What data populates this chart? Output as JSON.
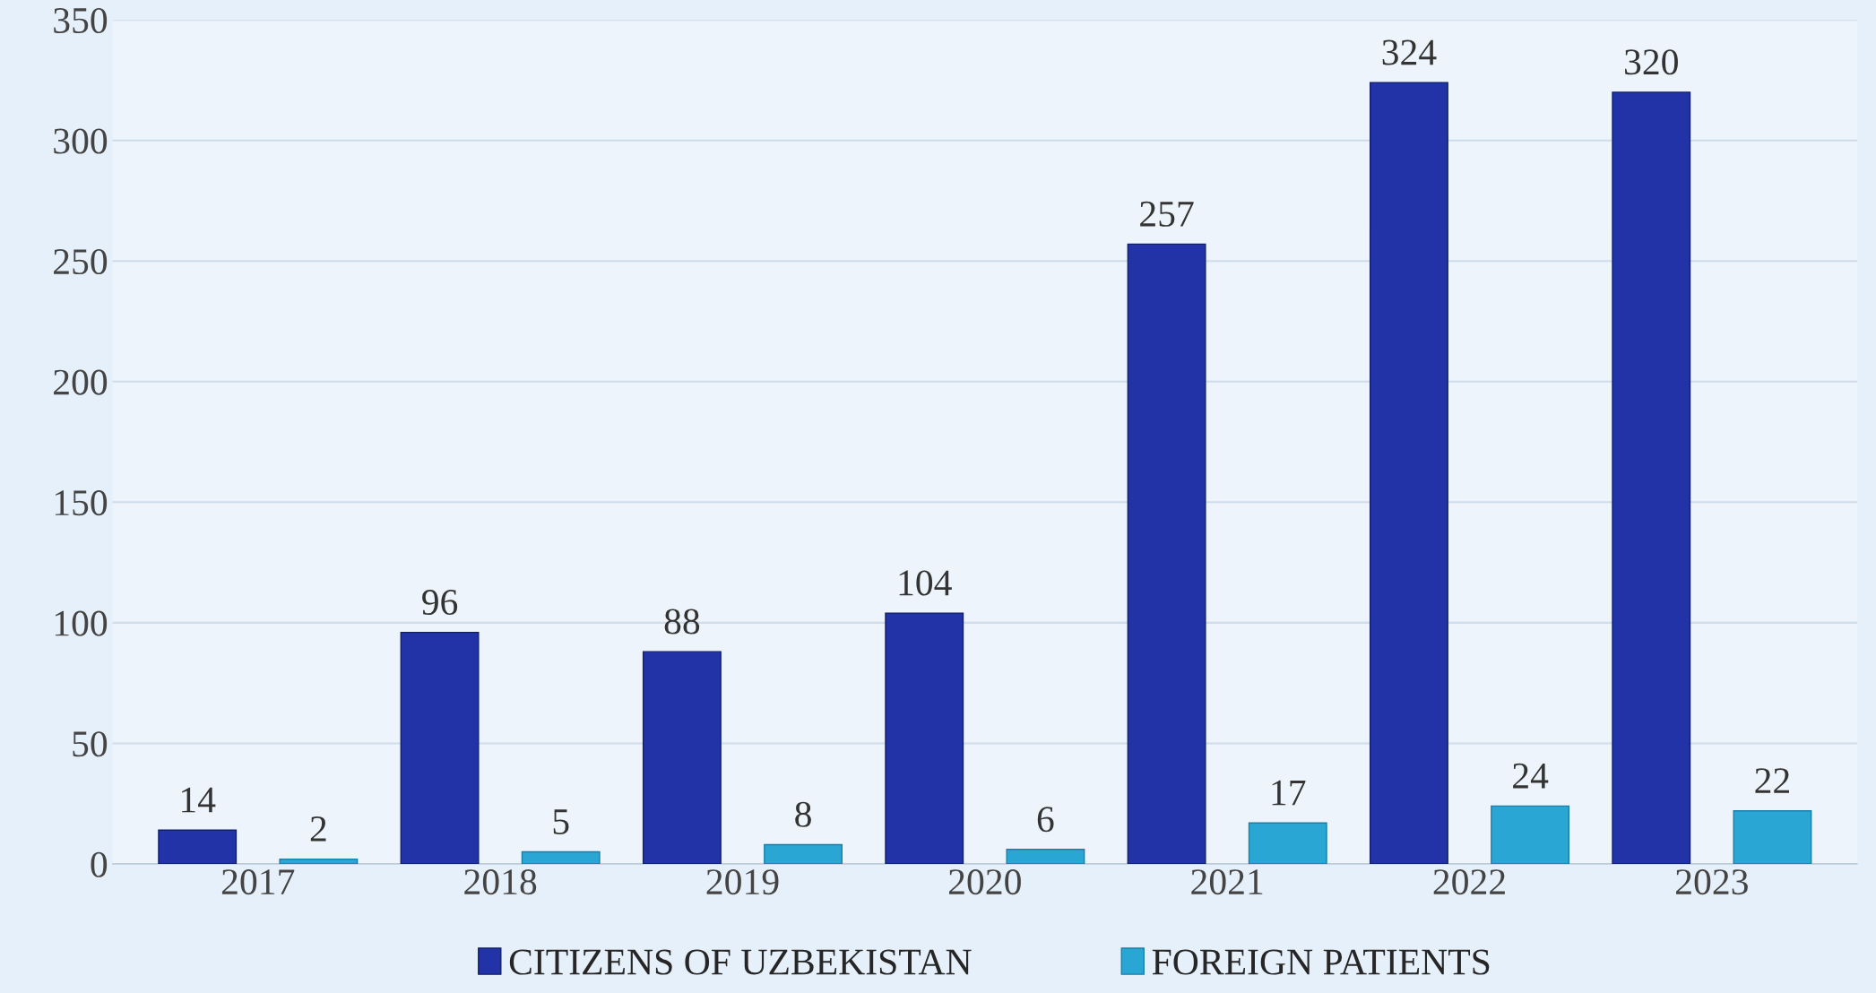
{
  "chart_data": {
    "type": "bar",
    "categories": [
      "2017",
      "2018",
      "2019",
      "2020",
      "2021",
      "2022",
      "2023"
    ],
    "series": [
      {
        "name": "CITIZENS OF UZBEKISTAN",
        "color": "#2233a8",
        "values": [
          14,
          96,
          88,
          104,
          257,
          324,
          320
        ]
      },
      {
        "name": "FOREIGN PATIENTS",
        "color": "#2aa6d4",
        "values": [
          2,
          5,
          8,
          6,
          17,
          24,
          22
        ]
      }
    ],
    "ylim": [
      0,
      350
    ],
    "yticks": [
      0,
      50,
      100,
      150,
      200,
      250,
      300,
      350
    ],
    "grid": "y",
    "legend": "bottom",
    "data_labels": true
  }
}
